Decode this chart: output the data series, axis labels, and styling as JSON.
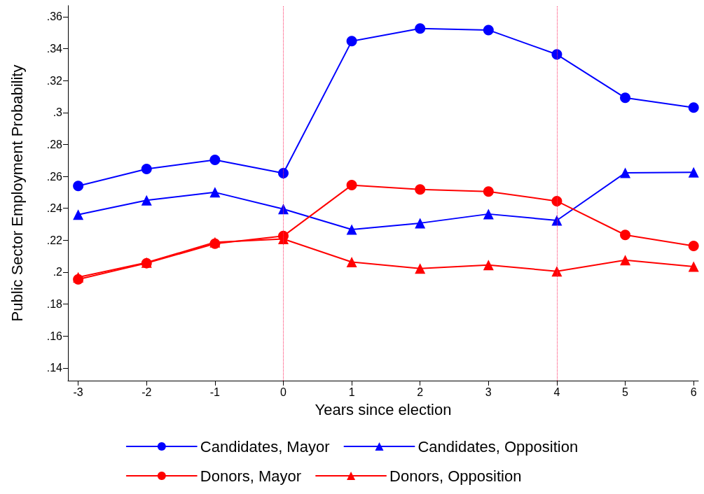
{
  "chart_data": {
    "type": "line",
    "xlabel": "Years since election",
    "ylabel": "Public Sector Employment Probability",
    "x": [
      -3,
      -2,
      -1,
      0,
      1,
      2,
      3,
      4,
      5,
      6
    ],
    "series": [
      {
        "name": "Candidates, Mayor",
        "color": "#0000ff",
        "marker": "circle",
        "values": [
          0.254,
          0.2646,
          0.2703,
          0.262,
          0.3447,
          0.3526,
          0.3517,
          0.3364,
          0.3092,
          0.3031
        ]
      },
      {
        "name": "Candidates, Opposition",
        "color": "#0000ff",
        "marker": "triangle",
        "values": [
          0.236,
          0.245,
          0.25,
          0.2395,
          0.2267,
          0.2307,
          0.2364,
          0.2324,
          0.2622,
          0.2625
        ]
      },
      {
        "name": "Donors, Mayor",
        "color": "#ff0000",
        "marker": "circle",
        "values": [
          0.1955,
          0.2056,
          0.2178,
          0.2226,
          0.2545,
          0.2518,
          0.2505,
          0.2445,
          0.2233,
          0.2164
        ]
      },
      {
        "name": "Donors, Opposition",
        "color": "#ff0000",
        "marker": "triangle",
        "values": [
          0.1968,
          0.206,
          0.2187,
          0.2208,
          0.2063,
          0.2023,
          0.2045,
          0.2005,
          0.2075,
          0.2035
        ]
      }
    ],
    "xlim": [
      -3.15,
      6.07
    ],
    "xticks": [
      -3,
      -2,
      -1,
      0,
      1,
      2,
      3,
      4,
      5,
      6
    ],
    "ylim": [
      0.132,
      0.367
    ],
    "yticks": [
      {
        "value": 0.14,
        "label": ".14"
      },
      {
        "value": 0.16,
        "label": ".16"
      },
      {
        "value": 0.18,
        "label": ".18"
      },
      {
        "value": 0.2,
        "label": ".2"
      },
      {
        "value": 0.22,
        "label": ".22"
      },
      {
        "value": 0.24,
        "label": ".24"
      },
      {
        "value": 0.26,
        "label": ".26"
      },
      {
        "value": 0.28,
        "label": ".28"
      },
      {
        "value": 0.3,
        "label": ".3"
      },
      {
        "value": 0.32,
        "label": ".32"
      },
      {
        "value": 0.34,
        "label": ".34"
      },
      {
        "value": 0.36,
        "label": ".36"
      }
    ],
    "ref_lines": [
      {
        "axis": "x",
        "value": 0,
        "color": "#ff3366",
        "line_style": "dotted"
      },
      {
        "axis": "x",
        "value": 4,
        "color": "#ff3366",
        "line_style": "dotted"
      }
    ],
    "grid": false,
    "legend": "bottom",
    "line_style": "solid"
  }
}
